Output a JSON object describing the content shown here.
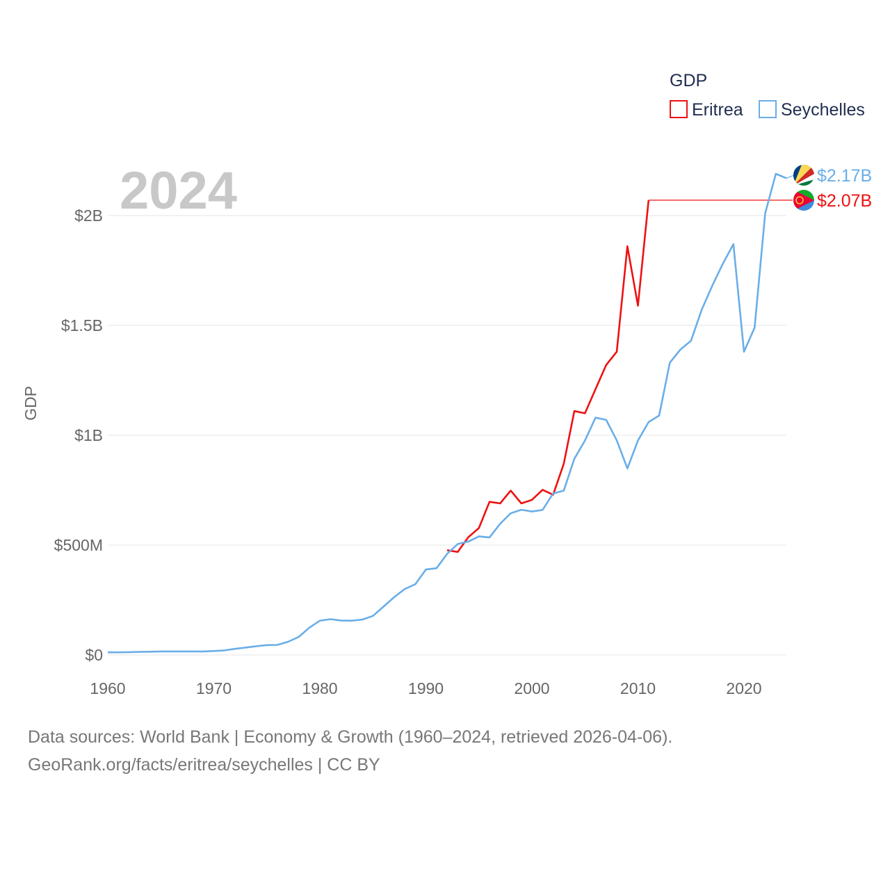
{
  "chart_data": {
    "type": "line",
    "year_label": "2024",
    "ylabel": "GDP",
    "xlim": [
      1960,
      2024
    ],
    "ylim": [
      0,
      2200000000
    ],
    "yticks": [
      {
        "value": 0,
        "label": "$0"
      },
      {
        "value": 500000000,
        "label": "$500M"
      },
      {
        "value": 1000000000,
        "label": "$1B"
      },
      {
        "value": 1500000000,
        "label": "$1.5B"
      },
      {
        "value": 2000000000,
        "label": "$2B"
      }
    ],
    "xticks": [
      {
        "value": 1960,
        "label": "1960"
      },
      {
        "value": 1970,
        "label": "1970"
      },
      {
        "value": 1980,
        "label": "1980"
      },
      {
        "value": 1990,
        "label": "1990"
      },
      {
        "value": 2000,
        "label": "2000"
      },
      {
        "value": 2010,
        "label": "2010"
      },
      {
        "value": 2020,
        "label": "2020"
      }
    ],
    "legend": {
      "title": "GDP",
      "position": "top-right"
    },
    "series": [
      {
        "name": "Eritrea",
        "color": "#ee1111",
        "end_label": "$2.07B",
        "end_icon": "eritrea-flag-icon",
        "x": [
          1992,
          1993,
          1994,
          1995,
          1996,
          1997,
          1998,
          1999,
          2000,
          2001,
          2002,
          2003,
          2004,
          2005,
          2006,
          2007,
          2008,
          2009,
          2010,
          2011
        ],
        "values": [
          477000000,
          469000000,
          536000000,
          578000000,
          697000000,
          690000000,
          748000000,
          690000000,
          706000000,
          752000000,
          729000000,
          870000000,
          1110000000,
          1100000000,
          1210000000,
          1320000000,
          1380000000,
          1860000000,
          1590000000,
          2070000000
        ],
        "extend_to": 2024
      },
      {
        "name": "Seychelles",
        "color": "#6aaee8",
        "end_label": "$2.17B",
        "end_icon": "seychelles-flag-icon",
        "x": [
          1960,
          1961,
          1962,
          1963,
          1964,
          1965,
          1966,
          1967,
          1968,
          1969,
          1970,
          1971,
          1972,
          1973,
          1974,
          1975,
          1976,
          1977,
          1978,
          1979,
          1980,
          1981,
          1982,
          1983,
          1984,
          1985,
          1986,
          1987,
          1988,
          1989,
          1990,
          1991,
          1992,
          1993,
          1994,
          1995,
          1996,
          1997,
          1998,
          1999,
          2000,
          2001,
          2002,
          2003,
          2004,
          2005,
          2006,
          2007,
          2008,
          2009,
          2010,
          2011,
          2012,
          2013,
          2014,
          2015,
          2016,
          2017,
          2018,
          2019,
          2020,
          2021,
          2022,
          2023,
          2024
        ],
        "values": [
          12000000,
          12000000,
          13000000,
          14000000,
          15000000,
          16000000,
          16000000,
          16000000,
          16000000,
          16000000,
          18000000,
          21000000,
          28000000,
          34000000,
          40000000,
          45000000,
          46000000,
          60000000,
          82000000,
          124000000,
          156000000,
          163000000,
          157000000,
          156000000,
          161000000,
          178000000,
          220000000,
          263000000,
          300000000,
          322000000,
          389000000,
          395000000,
          460000000,
          505000000,
          516000000,
          540000000,
          535000000,
          597000000,
          645000000,
          661000000,
          653000000,
          660000000,
          735000000,
          748000000,
          893000000,
          976000000,
          1080000000,
          1070000000,
          977000000,
          849000000,
          976000000,
          1060000000,
          1090000000,
          1330000000,
          1390000000,
          1430000000,
          1570000000,
          1680000000,
          1780000000,
          1870000000,
          1380000000,
          1490000000,
          2010000000,
          2190000000,
          2170000000
        ]
      }
    ]
  },
  "footer": {
    "line1": "Data sources: World Bank | Economy & Growth (1960–2024, retrieved 2026-04-06).",
    "line2": "GeoRank.org/facts/eritrea/seychelles | CC BY"
  }
}
